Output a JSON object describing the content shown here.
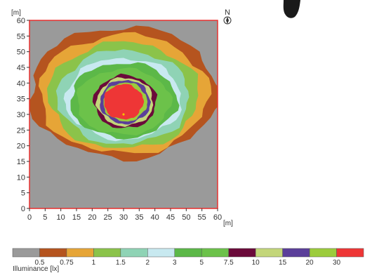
{
  "chart_data": {
    "type": "heatmap",
    "subtype": "isoline-illuminance-map",
    "title": "",
    "x_unit_label": "[m]",
    "y_unit_label": "[m]",
    "xlim": [
      0,
      60
    ],
    "ylim": [
      0,
      60
    ],
    "x_ticks": [
      0,
      5,
      10,
      15,
      20,
      25,
      30,
      35,
      40,
      45,
      50,
      55,
      60
    ],
    "y_ticks": [
      0,
      5,
      10,
      15,
      20,
      25,
      30,
      35,
      40,
      45,
      50,
      55,
      60
    ],
    "grid": false,
    "frame_color": "#e8302f",
    "background_color": "#9a9a9a",
    "north_label": "N",
    "light_source_position": {
      "x": 30,
      "y": 30
    },
    "legend": {
      "title": "Illuminance [lx]",
      "placement": "bottom",
      "boundaries": [
        "0.5",
        "0.75",
        "1",
        "1.5",
        "2",
        "3",
        "5",
        "7.5",
        "10",
        "15",
        "20",
        "30"
      ],
      "colors": [
        "#9a9a9a",
        "#b5541f",
        "#e6a537",
        "#8bc34a",
        "#8fd3b5",
        "#c8e9f0",
        "#5cb848",
        "#6cc24a",
        "#6b0a3a",
        "#c3d67a",
        "#5b3f9a",
        "#9ccc3c",
        "#ee3636"
      ]
    },
    "zones": [
      {
        "range": "0.5 - 0.75",
        "color": "#b5541f",
        "center": [
          30,
          37
        ],
        "radius": [
          30,
          21
        ]
      },
      {
        "range": "0.75 - 1",
        "color": "#e6a537",
        "center": [
          30,
          36.5
        ],
        "radius": [
          27,
          19
        ]
      },
      {
        "range": "1 - 1.5",
        "color": "#8bc34a",
        "center": [
          30,
          36
        ],
        "radius": [
          24,
          17
        ]
      },
      {
        "range": "1.5 - 2",
        "color": "#8fd3b5",
        "center": [
          30,
          35.5
        ],
        "radius": [
          21,
          15
        ]
      },
      {
        "range": "2 - 3",
        "color": "#c8e9f0",
        "center": [
          30,
          35
        ],
        "radius": [
          18.5,
          13
        ]
      },
      {
        "range": "3 - 5",
        "color": "#5cb848",
        "center": [
          30,
          34.5
        ],
        "radius": [
          17,
          12
        ]
      },
      {
        "range": "5 - 7.5",
        "color": "#6cc24a",
        "center": [
          30,
          34
        ],
        "radius": [
          15,
          10.5
        ]
      },
      {
        "range": "7.5 - 10",
        "color": "#6b0a3a",
        "center": [
          30.5,
          34
        ],
        "radius": [
          10,
          8.5
        ]
      },
      {
        "range": "10 - 15",
        "color": "#c3d67a",
        "center": [
          30.5,
          34
        ],
        "radius": [
          9,
          7.7
        ]
      },
      {
        "range": "15 - 20",
        "color": "#5b3f9a",
        "center": [
          30.5,
          34
        ],
        "radius": [
          8,
          7
        ]
      },
      {
        "range": "20 - 30",
        "color": "#9ccc3c",
        "center": [
          30.5,
          34
        ],
        "radius": [
          7,
          6.2
        ]
      },
      {
        "range": "> 30",
        "color": "#ee3636",
        "center": [
          30,
          34
        ],
        "radius": [
          6.3,
          5.6
        ]
      }
    ]
  }
}
